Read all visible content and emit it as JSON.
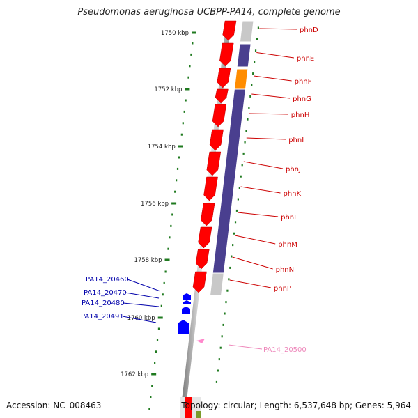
{
  "title": "Pseudomonas aeruginosa UCBPP-PA14, complete genome",
  "footer": {
    "accession": "Accession: NC_008463",
    "summary": "Topology: circular; Length: 6,537,648 bp; Genes: 5,964"
  },
  "colors": {
    "backbone": "#808080",
    "tick": "#1f7a1f",
    "gene_red": "#ff0000",
    "gene_blue": "#0000ff",
    "gene_pink": "#ff88cc",
    "operon_purple": "#4a3f8f",
    "operon_orange": "#ff8c00",
    "operon_grey": "#c8c8c8",
    "label_red": "#cc0000",
    "label_blue": "#0000aa",
    "label_pink": "#ee88bb"
  },
  "scale": {
    "ticks": [
      "1750 kbp",
      "1752 kbp",
      "1754 kbp",
      "1756 kbp",
      "1758 kbp",
      "1760 kbp",
      "1762 kbp"
    ]
  },
  "genes_phn": [
    "phnD",
    "phnE",
    "phnF",
    "phnG",
    "phnH",
    "phnI",
    "phnJ",
    "phnK",
    "phnL",
    "phnM",
    "phnN",
    "phnP"
  ],
  "genes_left": [
    "PA14_20460",
    "PA14_20470",
    "PA14_20480",
    "PA14_20491"
  ],
  "gene_pink": "PA14_20500"
}
